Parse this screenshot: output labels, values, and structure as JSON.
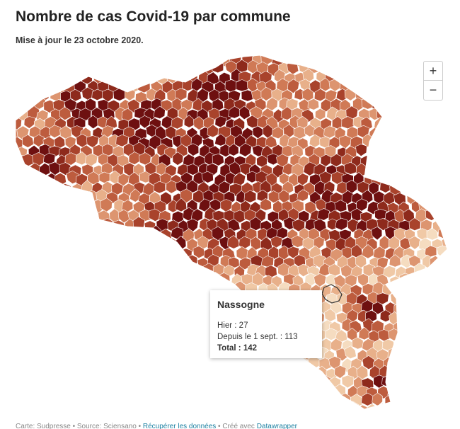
{
  "header": {
    "title": "Nombre de cas Covid-19 par commune",
    "subtitle": "Mise à jour le 23 octobre 2020."
  },
  "controls": {
    "zoom_in": "+",
    "zoom_out": "−"
  },
  "tooltip": {
    "name": "Nassogne",
    "lines": [
      "Hier : 27",
      "Depuis le 1 sept. : 113",
      "Total : 142"
    ]
  },
  "footer": {
    "credit": "Carte: Sudpresse • Source: Sciensano • ",
    "download": "Récupérer les données",
    "sep": " • Créé avec ",
    "made_with": "Datawrapper"
  }
}
